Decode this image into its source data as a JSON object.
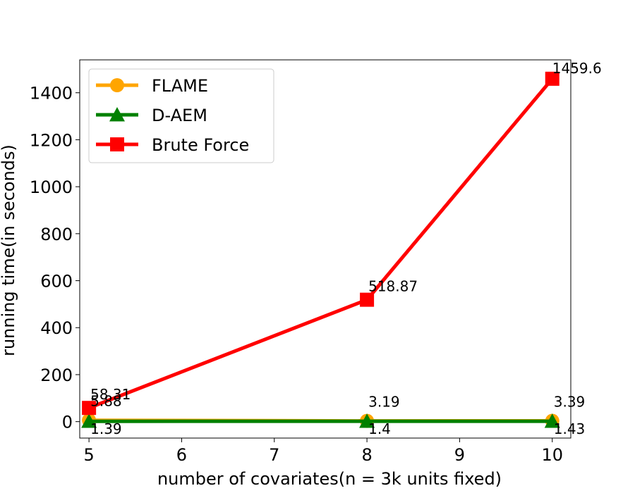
{
  "chart_data": {
    "type": "line",
    "xlabel": "number of covariates(n = 3k units fixed)",
    "ylabel": "running time(in seconds)",
    "xlim": [
      4.9,
      10.2
    ],
    "ylim": [
      -70,
      1540
    ],
    "x": [
      5,
      8,
      10
    ],
    "xticks": [
      "5",
      "6",
      "7",
      "8",
      "9",
      "10"
    ],
    "yticks": [
      "0",
      "200",
      "400",
      "600",
      "800",
      "1000",
      "1200",
      "1400"
    ],
    "legend_position": "top-left",
    "series": [
      {
        "name": "FLAME",
        "values": [
          5.88,
          3.19,
          3.39
        ],
        "labels": [
          "5.88",
          "3.19",
          "3.39"
        ],
        "color": "#FFA500",
        "marker": "circle"
      },
      {
        "name": "D-AEM",
        "values": [
          1.39,
          1.4,
          1.43
        ],
        "labels": [
          "1.39",
          "1.4",
          "1.43"
        ],
        "color": "#008000",
        "marker": "triangle"
      },
      {
        "name": "Brute Force",
        "values": [
          58.31,
          518.87,
          1459.6
        ],
        "labels": [
          "58.31",
          "518.87",
          "1459.6"
        ],
        "color": "#FF0000",
        "marker": "square"
      }
    ]
  }
}
